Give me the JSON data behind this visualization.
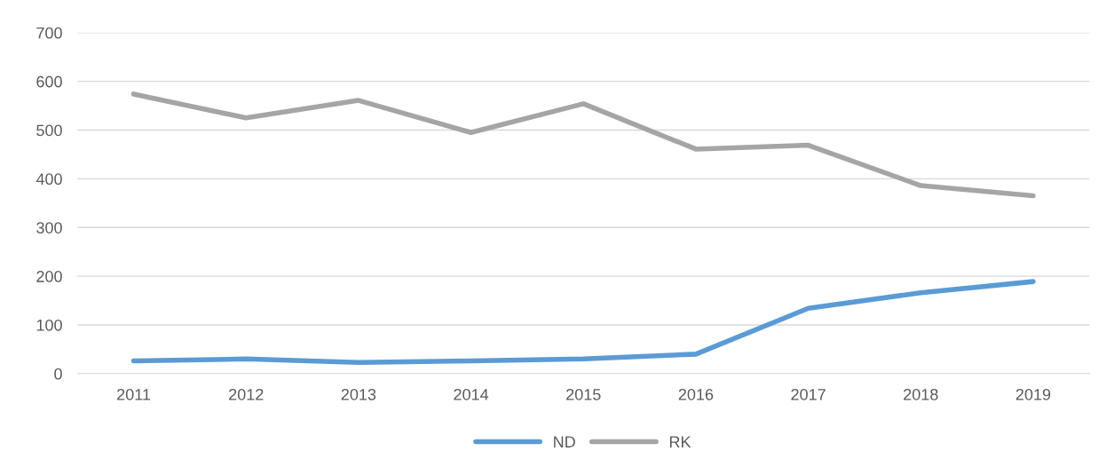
{
  "chart_data": {
    "type": "line",
    "categories": [
      "2011",
      "2012",
      "2013",
      "2014",
      "2015",
      "2016",
      "2017",
      "2018",
      "2019"
    ],
    "series": [
      {
        "name": "ND",
        "color": "#5b9bd5",
        "values": [
          26,
          30,
          23,
          26,
          30,
          40,
          134,
          166,
          189
        ]
      },
      {
        "name": "RK",
        "color": "#a5a5a5",
        "values": [
          574,
          525,
          561,
          495,
          554,
          461,
          469,
          386,
          365
        ]
      }
    ],
    "ylim": [
      0,
      700
    ],
    "yticks": [
      0,
      100,
      200,
      300,
      400,
      500,
      600,
      700
    ],
    "grid": "y",
    "legend": "bottom",
    "marker": "none",
    "line_style": "solid"
  }
}
